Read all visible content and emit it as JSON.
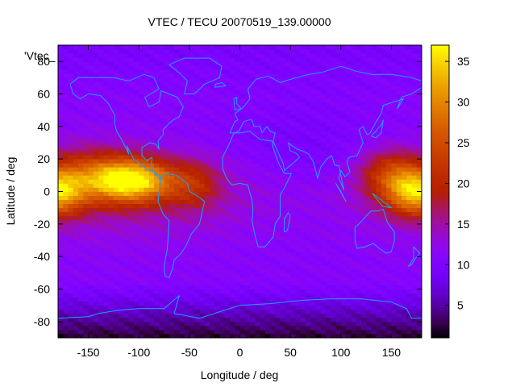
{
  "chart_data": {
    "type": "heatmap",
    "title": "VTEC / TECU 20070519_139.00000",
    "xlabel": "Longitude / deg",
    "ylabel": "Latitude / deg",
    "key_label": "'Vtec_",
    "xlim": [
      -180,
      180
    ],
    "ylim": [
      -90,
      90
    ],
    "xticks": [
      -150,
      -100,
      -50,
      0,
      50,
      100,
      150
    ],
    "yticks": [
      -80,
      -60,
      -40,
      -20,
      0,
      20,
      40,
      60,
      80
    ],
    "colorbar": {
      "range": [
        1,
        37
      ],
      "ticks": [
        5,
        10,
        15,
        20,
        25,
        30,
        35
      ]
    },
    "grid_resolution_deg": {
      "lon": 5,
      "lat": 2.5
    },
    "tec_features": [
      {
        "description": "equatorial anomaly peak, eastern Pacific",
        "lon": -108,
        "lat": 7,
        "value": 36
      },
      {
        "description": "equatorial anomaly peak, western Pacific",
        "lon": 175,
        "lat": 0,
        "value": 32
      },
      {
        "description": "background minimum, Antarctic",
        "lon": 60,
        "lat": -82,
        "value": 1
      }
    ]
  }
}
